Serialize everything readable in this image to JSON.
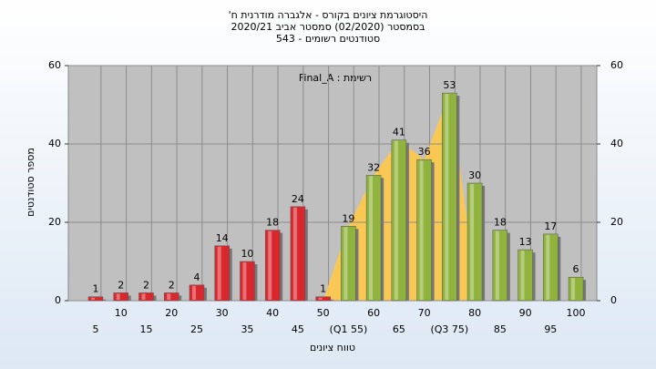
{
  "chart_data": {
    "type": "bar",
    "title": [
      "היסטוגרמת ציונים בקורס - אלגברה מודרנית ח'",
      "בסמסטר (02/2020) סמסטר אביב 2020/21",
      "סטודנטים רשומים - 543"
    ],
    "annotation": "רשימת : Final_A",
    "x_label": "טווח ציונים",
    "y_label": "מספר סטודנטים",
    "categories": [
      "5",
      "10",
      "15",
      "20",
      "25",
      "30",
      "35",
      "40",
      "45",
      "50",
      "(Q1 55)",
      "60",
      "65",
      "70",
      "(Q3 75)",
      "80",
      "85",
      "90",
      "95",
      "100"
    ],
    "values": [
      1,
      2,
      2,
      2,
      4,
      14,
      10,
      18,
      24,
      1,
      19,
      32,
      41,
      36,
      53,
      30,
      18,
      13,
      17,
      6
    ],
    "colors": [
      "#d9272e",
      "#d9272e",
      "#d9272e",
      "#d9272e",
      "#d9272e",
      "#d9272e",
      "#d9272e",
      "#d9272e",
      "#d9272e",
      "#d9272e",
      "#8fb33c",
      "#8fb33c",
      "#8fb33c",
      "#8fb33c",
      "#8fb33c",
      "#8fb33c",
      "#8fb33c",
      "#8fb33c",
      "#8fb33c",
      "#8fb33c"
    ],
    "ylim": [
      0,
      60
    ],
    "yticks": [
      0,
      20,
      40,
      60
    ],
    "y2lim": [
      0,
      60
    ],
    "y2ticks": [
      0,
      20,
      40,
      60
    ],
    "grid": true
  }
}
